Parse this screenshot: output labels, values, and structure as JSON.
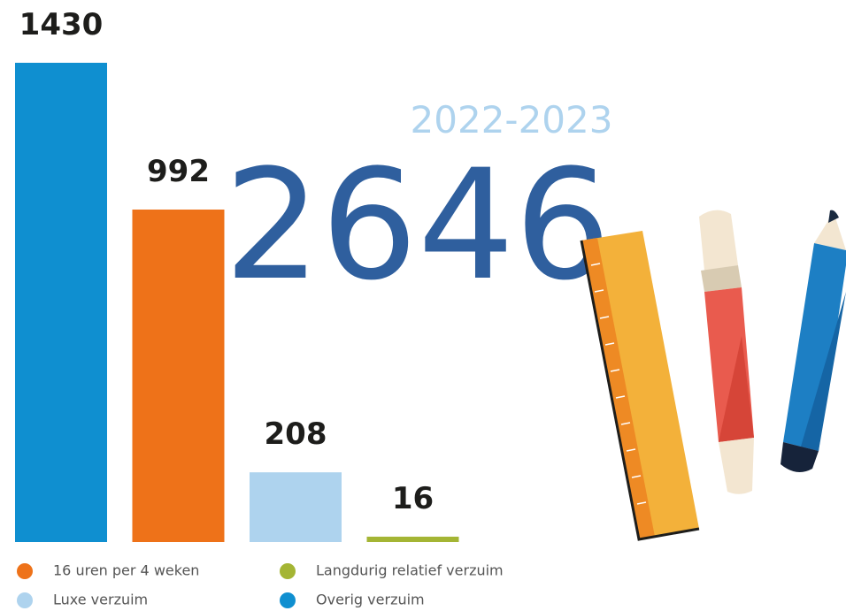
{
  "chart_data": {
    "type": "bar",
    "subtitle": "2022-2023",
    "total": "2646",
    "series": [
      {
        "name": "Overig verzuim",
        "color": "#0f8fd0",
        "values": [
          1430
        ]
      },
      {
        "name": "16 uren per 4 weken",
        "color": "#ee7219",
        "values": [
          992
        ]
      },
      {
        "name": "Luxe verzuim",
        "color": "#aed3ee",
        "values": [
          208
        ]
      },
      {
        "name": "Langdurig relatief verzuim",
        "color": "#a4b534",
        "values": [
          16
        ]
      }
    ]
  }
}
